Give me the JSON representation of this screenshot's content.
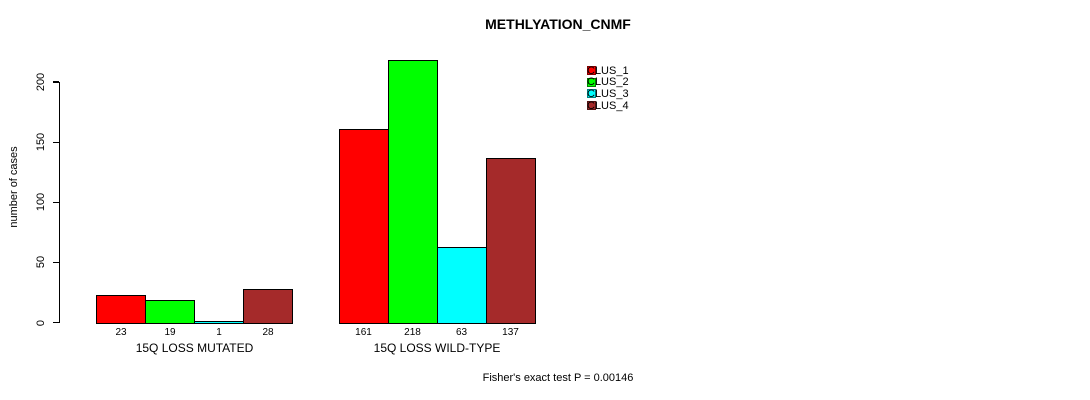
{
  "figure": {
    "background": "#FFFFFF"
  },
  "chart_data": {
    "type": "bar",
    "title": "METHLYATION_CNMF",
    "ylabel": "number of cases",
    "xlabel": "",
    "ylim": [
      0,
      220
    ],
    "yticks": [
      0,
      50,
      100,
      150,
      200
    ],
    "grid": false,
    "legend_position": "top-right",
    "categories": [
      "15Q LOSS MUTATED",
      "15Q LOSS WILD-TYPE"
    ],
    "series": [
      {
        "name": "CLUS_1",
        "color": "#FF0000",
        "values": [
          23,
          161
        ]
      },
      {
        "name": "CLUS_2",
        "color": "#00FF00",
        "values": [
          19,
          218
        ]
      },
      {
        "name": "CLUS_3",
        "color": "#00FFFF",
        "values": [
          1,
          63
        ]
      },
      {
        "name": "CLUS_4",
        "color": "#A52A2A",
        "values": [
          28,
          137
        ]
      }
    ],
    "value_labels_shown": true,
    "bar_border_color": "#000000",
    "annotation": "Fisher's exact test P = 0.00146"
  }
}
